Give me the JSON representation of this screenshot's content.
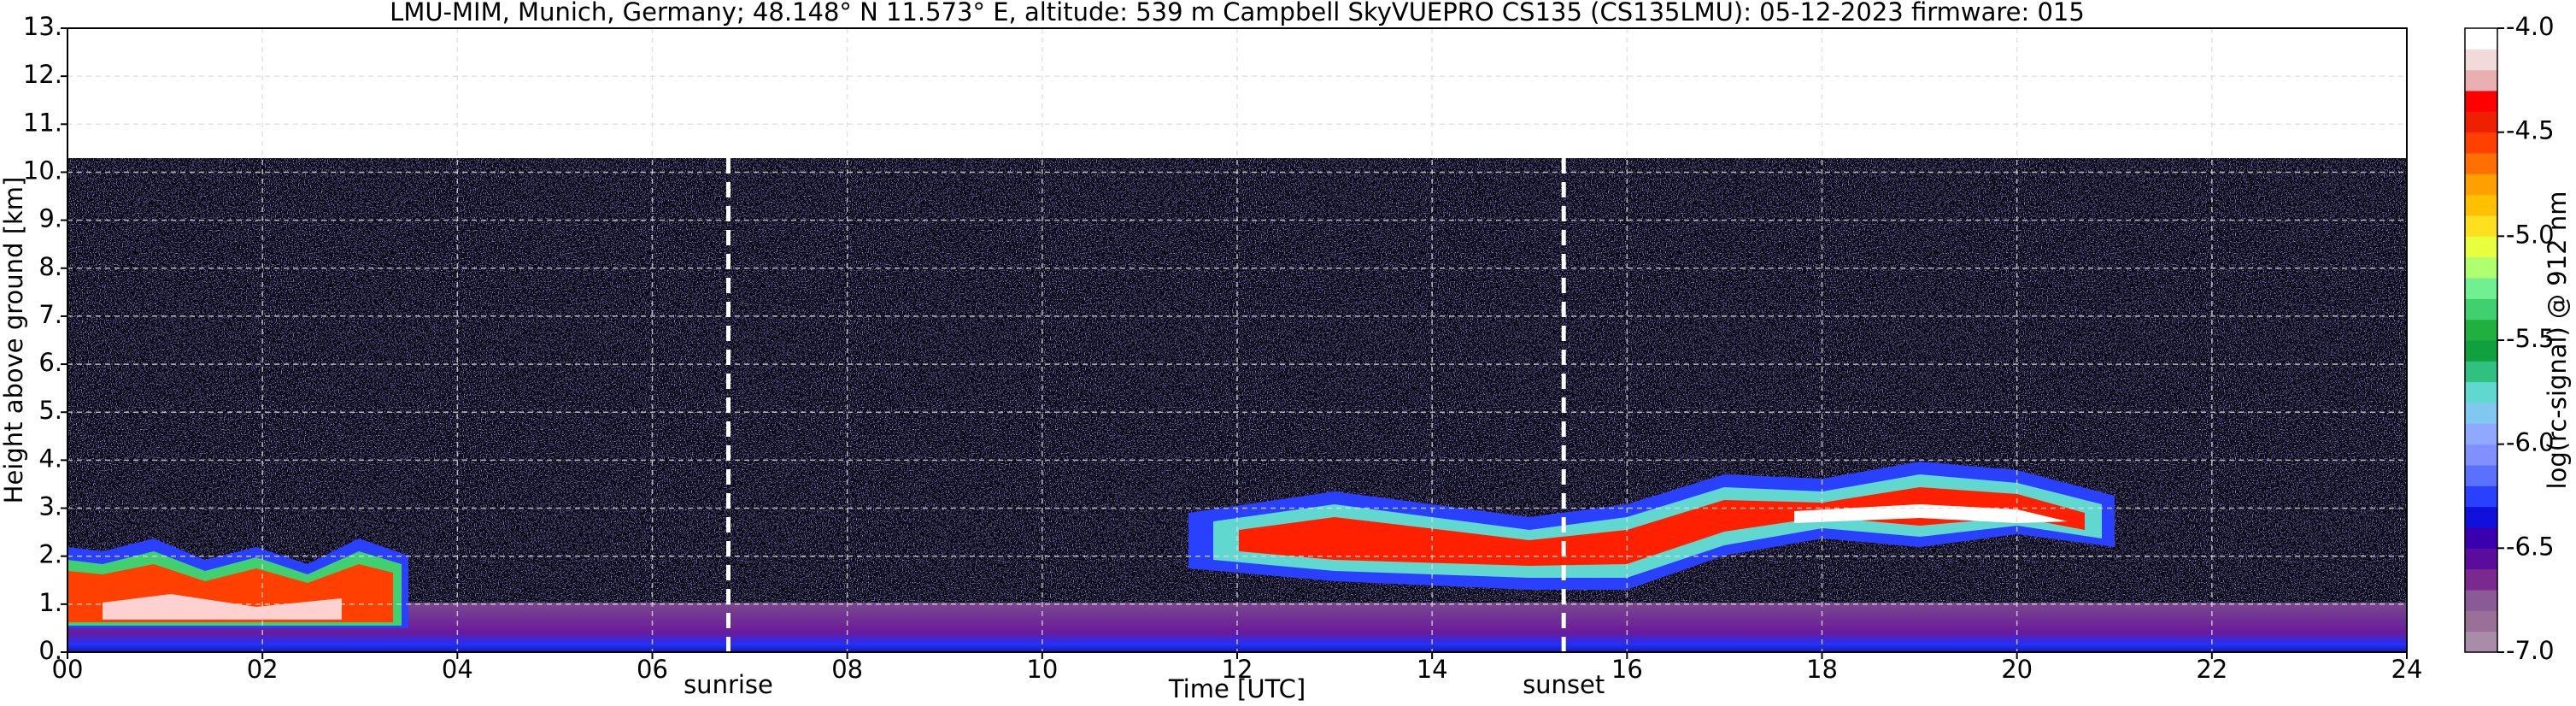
{
  "chart_data": {
    "type": "heatmap",
    "title": "LMU-MIM, Munich, Germany; 48.148° N 11.573° E, altitude: 539 m    Campbell SkyVUEPRO CS135 (CS135LMU): 05-12-2023    firmware: 015",
    "xlabel": "Time [UTC]",
    "ylabel": "Height above ground [km]",
    "xlim": [
      0,
      24
    ],
    "xticks": [
      {
        "value": 0,
        "label": "00"
      },
      {
        "value": 2,
        "label": "02"
      },
      {
        "value": 4,
        "label": "04"
      },
      {
        "value": 6,
        "label": "06"
      },
      {
        "value": 8,
        "label": "08"
      },
      10,
      12,
      14,
      16,
      18,
      20,
      22,
      24
    ],
    "ylim": [
      0,
      13
    ],
    "yticks": [
      {
        "value": 0,
        "label": "0."
      },
      {
        "value": 1,
        "label": "1."
      },
      {
        "value": 2,
        "label": "2."
      },
      {
        "value": 3,
        "label": "3."
      },
      {
        "value": 4,
        "label": "4."
      },
      {
        "value": 5,
        "label": "5."
      },
      {
        "value": 6,
        "label": "6."
      },
      {
        "value": 7,
        "label": "7."
      },
      {
        "value": 8,
        "label": "8."
      },
      {
        "value": 9,
        "label": "9."
      },
      {
        "value": 10,
        "label": "10."
      },
      {
        "value": 11,
        "label": "11."
      },
      {
        "value": 12,
        "label": "12."
      },
      {
        "value": 13,
        "label": "13."
      }
    ],
    "grid": true,
    "annotations": [
      {
        "text": "sunrise",
        "x": 6.78
      },
      {
        "text": "sunset",
        "x": 15.35
      }
    ],
    "colorbar": {
      "label": "log(rc-signal) @ 912 nm",
      "lim": [
        -7,
        -4
      ],
      "ticks": [
        {
          "value": -7,
          "label": "-7.0"
        },
        -6.5,
        {
          "value": -6,
          "label": "-6.0"
        },
        -5.5,
        {
          "value": -5,
          "label": "-5.0"
        },
        -4.5,
        {
          "value": -4,
          "label": "-4.0"
        }
      ],
      "colors": [
        "#a88ca8",
        "#9a7099",
        "#8a5a95",
        "#7a2a8e",
        "#5a0c9a",
        "#3a00b0",
        "#1010dd",
        "#2a40ff",
        "#5a70ff",
        "#8090ff",
        "#90a8ff",
        "#80c8f0",
        "#60d8d0",
        "#30c080",
        "#10a040",
        "#20b040",
        "#40d070",
        "#70f090",
        "#b0ff70",
        "#e8ff40",
        "#ffe020",
        "#ffc000",
        "#ffa000",
        "#ff7000",
        "#ff4000",
        "#ee2000",
        "#ff0000",
        "#e8b0b0",
        "#f2dada",
        "#ffffff"
      ]
    }
  }
}
